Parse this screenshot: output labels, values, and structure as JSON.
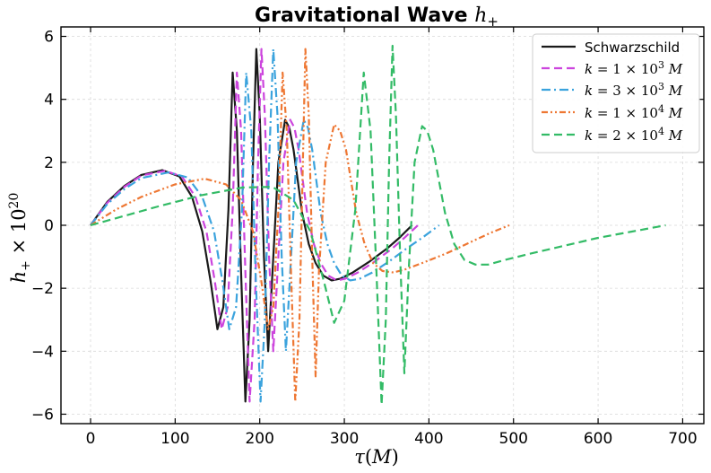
{
  "chart_data": {
    "type": "line",
    "title": "Gravitational Wave h+",
    "xlabel": "τ(M)",
    "ylabel": "h+ × 10^20",
    "xlim": [
      -35,
      725
    ],
    "ylim": [
      -6.3,
      6.3
    ],
    "xticks": [
      0,
      100,
      200,
      300,
      400,
      500,
      600,
      700
    ],
    "yticks": [
      -6,
      -4,
      -2,
      0,
      2,
      4,
      6
    ],
    "ytick_labels": [
      "−6",
      "−4",
      "−2",
      "0",
      "2",
      "4",
      "6"
    ],
    "grid": true,
    "legend_position": "top-right",
    "series": [
      {
        "name": "Schwarzschild",
        "color": "#1a1a1a",
        "dash": "solid",
        "x": [
          0,
          20,
          40,
          60,
          85,
          105,
          120,
          132,
          142,
          150,
          157,
          163,
          168,
          173,
          178,
          183,
          188,
          192,
          196,
          200,
          205,
          210,
          215,
          222,
          230,
          235,
          240,
          245,
          250,
          258,
          266,
          275,
          285,
          295,
          310,
          330,
          350,
          365,
          380
        ],
        "y": [
          0,
          0.75,
          1.25,
          1.6,
          1.75,
          1.55,
          0.9,
          -0.2,
          -1.8,
          -3.3,
          -2.6,
          0.5,
          4.85,
          3.0,
          -1.5,
          -5.6,
          -3.0,
          2.0,
          5.6,
          3.5,
          -1.0,
          -4.0,
          -1.5,
          2.0,
          3.35,
          3.1,
          2.4,
          1.4,
          0.4,
          -0.6,
          -1.2,
          -1.6,
          -1.75,
          -1.7,
          -1.5,
          -1.15,
          -0.75,
          -0.4,
          0.0
        ]
      },
      {
        "name": "k = 1 × 10^3 M",
        "color": "#cc44dd",
        "dash": "dashed",
        "x": [
          0,
          20,
          40,
          60,
          88,
          108,
          124,
          137,
          147,
          155,
          162,
          168,
          173,
          178,
          183,
          188,
          194,
          198,
          202,
          206,
          211,
          216,
          221,
          228,
          236,
          241,
          246,
          251,
          256,
          264,
          272,
          281,
          291,
          301,
          316,
          336,
          356,
          371,
          387
        ],
        "y": [
          0,
          0.72,
          1.22,
          1.58,
          1.73,
          1.55,
          0.9,
          -0.2,
          -1.8,
          -3.3,
          -2.6,
          0.5,
          4.85,
          3.0,
          -1.5,
          -5.6,
          -3.0,
          2.0,
          5.6,
          3.5,
          -1.0,
          -4.0,
          -1.5,
          2.0,
          3.35,
          3.1,
          2.4,
          1.4,
          0.4,
          -0.6,
          -1.2,
          -1.6,
          -1.75,
          -1.7,
          -1.5,
          -1.15,
          -0.75,
          -0.4,
          0.0
        ]
      },
      {
        "name": "k = 3 × 10^3 M",
        "color": "#3ba3dd",
        "dash": "dashdot",
        "x": [
          0,
          20,
          40,
          60,
          92,
          115,
          132,
          146,
          156,
          164,
          172,
          179,
          184,
          190,
          195,
          201,
          206,
          211,
          216,
          221,
          226,
          231,
          236,
          243,
          252,
          257,
          262,
          267,
          272,
          280,
          288,
          297,
          307,
          318,
          333,
          353,
          373,
          392,
          412
        ],
        "y": [
          0,
          0.68,
          1.15,
          1.5,
          1.68,
          1.52,
          0.9,
          -0.2,
          -1.8,
          -3.3,
          -2.6,
          0.5,
          4.85,
          3.0,
          -1.5,
          -5.6,
          -3.0,
          2.0,
          5.6,
          3.5,
          -1.0,
          -4.0,
          -1.5,
          2.0,
          3.35,
          3.1,
          2.4,
          1.4,
          0.4,
          -0.6,
          -1.2,
          -1.6,
          -1.75,
          -1.7,
          -1.5,
          -1.15,
          -0.75,
          -0.4,
          0.0
        ]
      },
      {
        "name": "k = 1 × 10^4 M",
        "color": "#ee7733",
        "dash": "dashdotdot",
        "x": [
          0,
          30,
          60,
          100,
          135,
          160,
          178,
          192,
          202,
          210,
          216,
          222,
          227,
          232,
          237,
          242,
          247,
          251,
          254,
          258,
          262,
          266,
          270,
          278,
          288,
          295,
          302,
          308,
          314,
          324,
          334,
          345,
          358,
          372,
          392,
          420,
          448,
          472,
          495
        ],
        "y": [
          0,
          0.5,
          0.9,
          1.3,
          1.48,
          1.3,
          0.8,
          -0.2,
          -1.8,
          -3.3,
          -2.6,
          0.5,
          4.85,
          3.0,
          -1.5,
          -5.6,
          -3.0,
          2.0,
          5.6,
          3.5,
          -1.0,
          -4.8,
          -1.5,
          2.0,
          3.2,
          3.0,
          2.4,
          1.4,
          0.4,
          -0.6,
          -1.2,
          -1.45,
          -1.5,
          -1.4,
          -1.2,
          -0.9,
          -0.55,
          -0.25,
          0.0
        ]
      },
      {
        "name": "k = 2 × 10^4 M",
        "color": "#33bb66",
        "dash": "dashed",
        "x": [
          0,
          40,
          80,
          130,
          180,
          215,
          240,
          260,
          276,
          288,
          300,
          313,
          323,
          331,
          338,
          344,
          349,
          353,
          357,
          361,
          366,
          371,
          376,
          383,
          392,
          398,
          405,
          412,
          419,
          430,
          442,
          455,
          470,
          490,
          520,
          560,
          600,
          640,
          680
        ],
        "y": [
          0,
          0.3,
          0.6,
          0.95,
          1.2,
          1.22,
          0.8,
          -0.2,
          -1.8,
          -3.1,
          -2.4,
          0.5,
          4.85,
          3.0,
          -1.5,
          -5.7,
          -3.0,
          2.0,
          5.7,
          3.5,
          -1.0,
          -4.7,
          -1.5,
          2.0,
          3.15,
          3.0,
          2.4,
          1.4,
          0.4,
          -0.6,
          -1.1,
          -1.25,
          -1.25,
          -1.1,
          -0.9,
          -0.65,
          -0.4,
          -0.2,
          0.0
        ]
      }
    ]
  }
}
